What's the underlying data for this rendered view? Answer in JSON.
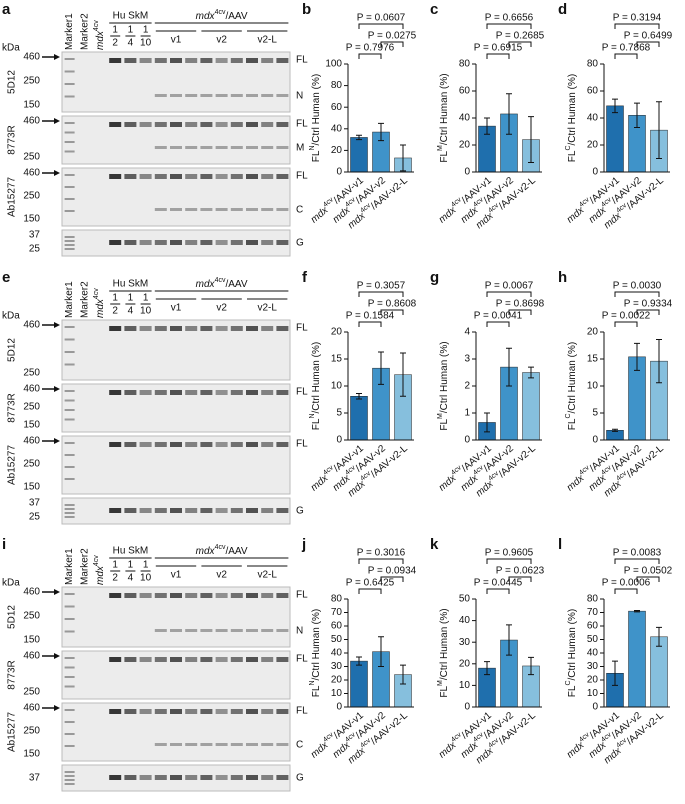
{
  "blots": [
    {
      "panel": "a",
      "kda": "kDa",
      "marker1": "Marker1",
      "marker2": "Marker2",
      "mdx": [
        "mdx",
        "4cv"
      ],
      "group1": "Hu SkM",
      "fractions": [
        [
          "1",
          "2"
        ],
        [
          "1",
          "4"
        ],
        [
          "1",
          "10"
        ]
      ],
      "group2": [
        "mdx",
        "4cv",
        "/AAV"
      ],
      "subgroups": [
        "v1",
        "v2",
        "v2-L"
      ],
      "rows": [
        {
          "antibody": "5D12",
          "markers": [
            "460",
            "250",
            "150"
          ],
          "bands": [
            "FL",
            "N"
          ]
        },
        {
          "antibody": "8773R",
          "markers": [
            "460",
            "250"
          ],
          "bands": [
            "FL",
            "M"
          ]
        },
        {
          "antibody": "Ab15277",
          "markers": [
            "460",
            "250",
            "150"
          ],
          "bands": [
            "FL",
            "C"
          ]
        },
        {
          "markers": [
            "37",
            "25"
          ],
          "bands": [
            "G"
          ]
        }
      ]
    },
    {
      "panel": "e",
      "kda": "kDa",
      "marker1": "Marker1",
      "marker2": "Marker2",
      "mdx": [
        "mdx",
        "4cv"
      ],
      "group1": "Hu SkM",
      "fractions": [
        [
          "1",
          "2"
        ],
        [
          "1",
          "4"
        ],
        [
          "1",
          "10"
        ]
      ],
      "group2": [
        "mdx",
        "4cv",
        "/AAV"
      ],
      "subgroups": [
        "v1",
        "v2",
        "v2-L"
      ],
      "rows": [
        {
          "antibody": "5D12",
          "markers": [
            "460",
            "250"
          ],
          "bands": [
            "FL"
          ]
        },
        {
          "antibody": "8773R",
          "markers": [
            "460",
            "250",
            "150"
          ],
          "bands": [
            "FL"
          ]
        },
        {
          "antibody": "Ab15277",
          "markers": [
            "460",
            "250",
            "150"
          ],
          "bands": [
            "FL"
          ]
        },
        {
          "markers": [
            "37",
            "25"
          ],
          "bands": [
            "G"
          ]
        }
      ]
    },
    {
      "panel": "i",
      "kda": "kDa",
      "marker1": "Marker1",
      "marker2": "Marker2",
      "mdx": [
        "mdx",
        "4cv"
      ],
      "group1": "Hu SkM",
      "fractions": [
        [
          "1",
          "2"
        ],
        [
          "1",
          "4"
        ],
        [
          "1",
          "10"
        ]
      ],
      "group2": [
        "mdx",
        "4cv",
        "/AAV"
      ],
      "subgroups": [
        "v1",
        "v2",
        "v2-L"
      ],
      "rows": [
        {
          "antibody": "5D12",
          "markers": [
            "460",
            "250",
            "150"
          ],
          "bands": [
            "FL",
            "N"
          ]
        },
        {
          "antibody": "8773R",
          "markers": [
            "460",
            "250"
          ],
          "bands": [
            "FL"
          ]
        },
        {
          "antibody": "Ab15277",
          "markers": [
            "460",
            "250",
            "150"
          ],
          "bands": [
            "FL",
            "C"
          ]
        },
        {
          "markers": [
            "37"
          ],
          "bands": [
            "G"
          ]
        }
      ]
    }
  ],
  "chart_data": [
    {
      "type": "bar",
      "title": "b",
      "ylabel": [
        "FL",
        "N",
        "/Ctrl Human (%)"
      ],
      "categories": [
        [
          "mdx",
          "4cv",
          "/AAV-v1"
        ],
        [
          "mdx",
          "4cv",
          "/AAV-v2"
        ],
        [
          "mdx",
          "4cv",
          "/AAV-v2-L"
        ]
      ],
      "values": [
        32,
        37,
        13
      ],
      "errors": [
        2,
        8,
        12
      ],
      "colors": [
        "#1f6fad",
        "#3f93c9",
        "#86bfdd"
      ],
      "ylim": [
        0,
        100
      ],
      "yticks": [
        0,
        20,
        40,
        60,
        80,
        100
      ],
      "comparisons": [
        {
          "between": [
            0,
            2
          ],
          "label": "P = 0.0607"
        },
        {
          "between": [
            0,
            1
          ],
          "label": "P = 0.7976"
        },
        {
          "between": [
            1,
            2
          ],
          "label": "P = 0.0275"
        }
      ]
    },
    {
      "type": "bar",
      "title": "c",
      "ylabel": [
        "FL",
        "M",
        "/Ctrl Human (%)"
      ],
      "categories": [
        [
          "mdx",
          "4cv",
          "/AAV-v1"
        ],
        [
          "mdx",
          "4cv",
          "/AAV-v2"
        ],
        [
          "mdx",
          "4cv",
          "/AAV-v2-L"
        ]
      ],
      "values": [
        34,
        43,
        24
      ],
      "errors": [
        6,
        15,
        17
      ],
      "colors": [
        "#1f6fad",
        "#3f93c9",
        "#86bfdd"
      ],
      "ylim": [
        0,
        80
      ],
      "yticks": [
        0,
        20,
        40,
        60,
        80
      ],
      "comparisons": [
        {
          "between": [
            0,
            2
          ],
          "label": "P = 0.6656"
        },
        {
          "between": [
            0,
            1
          ],
          "label": "P = 0.6915"
        },
        {
          "between": [
            1,
            2
          ],
          "label": "P = 0.2685"
        }
      ]
    },
    {
      "type": "bar",
      "title": "d",
      "ylabel": [
        "FL",
        "C",
        "/Ctrl Human (%)"
      ],
      "categories": [
        [
          "mdx",
          "4cv",
          "/AAV-v1"
        ],
        [
          "mdx",
          "4cv",
          "/AAV-v2"
        ],
        [
          "mdx",
          "4cv",
          "/AAV-v2-L"
        ]
      ],
      "values": [
        49,
        42,
        31
      ],
      "errors": [
        5,
        9,
        21
      ],
      "colors": [
        "#1f6fad",
        "#3f93c9",
        "#86bfdd"
      ],
      "ylim": [
        0,
        80
      ],
      "yticks": [
        0,
        20,
        40,
        60,
        80
      ],
      "comparisons": [
        {
          "between": [
            0,
            2
          ],
          "label": "P = 0.3194"
        },
        {
          "between": [
            0,
            1
          ],
          "label": "P = 0.7868"
        },
        {
          "between": [
            1,
            2
          ],
          "label": "P = 0.6499"
        }
      ]
    },
    {
      "type": "bar",
      "title": "f",
      "ylabel": [
        "FL",
        "N",
        "/Ctrl Human (%)"
      ],
      "categories": [
        [
          "mdx",
          "4cv",
          "/AAV-v1"
        ],
        [
          "mdx",
          "4cv",
          "/AAV-v2"
        ],
        [
          "mdx",
          "4cv",
          "/AAV-v2-L"
        ]
      ],
      "values": [
        8.1,
        13.3,
        12.1
      ],
      "errors": [
        0.5,
        3,
        4
      ],
      "colors": [
        "#1f6fad",
        "#3f93c9",
        "#86bfdd"
      ],
      "ylim": [
        0,
        20
      ],
      "yticks": [
        0,
        5,
        10,
        15,
        20
      ],
      "comparisons": [
        {
          "between": [
            0,
            2
          ],
          "label": "P = 0.3057"
        },
        {
          "between": [
            0,
            1
          ],
          "label": "P = 0.1584"
        },
        {
          "between": [
            1,
            2
          ],
          "label": "P = 0.8608"
        }
      ]
    },
    {
      "type": "bar",
      "title": "g",
      "ylabel": [
        "FL",
        "M",
        "/Ctrl Human (%)"
      ],
      "categories": [
        [
          "mdx",
          "4cv",
          "/AAV-v1"
        ],
        [
          "mdx",
          "4cv",
          "/AAV-v2"
        ],
        [
          "mdx",
          "4cv",
          "/AAV-v2-L"
        ]
      ],
      "values": [
        0.65,
        2.7,
        2.5
      ],
      "errors": [
        0.35,
        0.7,
        0.2
      ],
      "colors": [
        "#1f6fad",
        "#3f93c9",
        "#86bfdd"
      ],
      "ylim": [
        0,
        4
      ],
      "yticks": [
        0,
        1,
        2,
        3,
        4
      ],
      "comparisons": [
        {
          "between": [
            0,
            2
          ],
          "label": "P = 0.0067"
        },
        {
          "between": [
            0,
            1
          ],
          "label": "P = 0.0041"
        },
        {
          "between": [
            1,
            2
          ],
          "label": "P = 0.8698"
        }
      ]
    },
    {
      "type": "bar",
      "title": "h",
      "ylabel": [
        "FL",
        "C",
        "/Ctrl Human (%)"
      ],
      "categories": [
        [
          "mdx",
          "4cv",
          "/AAV-v1"
        ],
        [
          "mdx",
          "4cv",
          "/AAV-v2"
        ],
        [
          "mdx",
          "4cv",
          "/AAV-v2-L"
        ]
      ],
      "values": [
        1.8,
        15.4,
        14.6
      ],
      "errors": [
        0.2,
        2.5,
        4
      ],
      "colors": [
        "#1f6fad",
        "#3f93c9",
        "#86bfdd"
      ],
      "ylim": [
        0,
        20
      ],
      "yticks": [
        0,
        5,
        10,
        15,
        20
      ],
      "comparisons": [
        {
          "between": [
            0,
            2
          ],
          "label": "P = 0.0030"
        },
        {
          "between": [
            0,
            1
          ],
          "label": "P = 0.0022"
        },
        {
          "between": [
            1,
            2
          ],
          "label": "P = 0.9334"
        }
      ]
    },
    {
      "type": "bar",
      "title": "j",
      "ylabel": [
        "FL",
        "N",
        "/Ctrl Human (%)"
      ],
      "categories": [
        [
          "mdx",
          "4cv",
          "/AAV-v1"
        ],
        [
          "mdx",
          "4cv",
          "/AAV-v2"
        ],
        [
          "mdx",
          "4cv",
          "/AAV-v2-L"
        ]
      ],
      "values": [
        34,
        41,
        24
      ],
      "errors": [
        3,
        11,
        7
      ],
      "colors": [
        "#1f6fad",
        "#3f93c9",
        "#86bfdd"
      ],
      "ylim": [
        0,
        80
      ],
      "yticks": [
        0,
        10,
        20,
        30,
        40,
        50,
        60,
        70,
        80
      ],
      "comparisons": [
        {
          "between": [
            0,
            2
          ],
          "label": "P = 0.3016"
        },
        {
          "between": [
            0,
            1
          ],
          "label": "P = 0.6425"
        },
        {
          "between": [
            1,
            2
          ],
          "label": "P = 0.0934"
        }
      ]
    },
    {
      "type": "bar",
      "title": "k",
      "ylabel": [
        "FL",
        "M",
        "/Ctrl Human (%)"
      ],
      "categories": [
        [
          "mdx",
          "4cv",
          "/AAV-v1"
        ],
        [
          "mdx",
          "4cv",
          "/AAV-v2"
        ],
        [
          "mdx",
          "4cv",
          "/AAV-v2-L"
        ]
      ],
      "values": [
        18,
        31,
        19
      ],
      "errors": [
        3,
        7,
        4
      ],
      "colors": [
        "#1f6fad",
        "#3f93c9",
        "#86bfdd"
      ],
      "ylim": [
        0,
        50
      ],
      "yticks": [
        0,
        10,
        20,
        30,
        40,
        50
      ],
      "comparisons": [
        {
          "between": [
            0,
            2
          ],
          "label": "P = 0.9605"
        },
        {
          "between": [
            0,
            1
          ],
          "label": "P = 0.0445"
        },
        {
          "between": [
            1,
            2
          ],
          "label": "P = 0.0623"
        }
      ]
    },
    {
      "type": "bar",
      "title": "l",
      "ylabel": [
        "FL",
        "C",
        "/Ctrl Human (%)"
      ],
      "categories": [
        [
          "mdx",
          "4cv",
          "/AAV-v1"
        ],
        [
          "mdx",
          "4cv",
          "/AAV-v2"
        ],
        [
          "mdx",
          "4cv",
          "/AAV-v2-L"
        ]
      ],
      "values": [
        25,
        71,
        52
      ],
      "errors": [
        9,
        0.5,
        7
      ],
      "colors": [
        "#1f6fad",
        "#3f93c9",
        "#86bfdd"
      ],
      "ylim": [
        0,
        80
      ],
      "yticks": [
        0,
        10,
        20,
        30,
        40,
        50,
        60,
        70,
        80
      ],
      "comparisons": [
        {
          "between": [
            0,
            2
          ],
          "label": "P = 0.0083"
        },
        {
          "between": [
            0,
            1
          ],
          "label": "P = 0.0006"
        },
        {
          "between": [
            1,
            2
          ],
          "label": "P = 0.0502"
        }
      ]
    }
  ]
}
